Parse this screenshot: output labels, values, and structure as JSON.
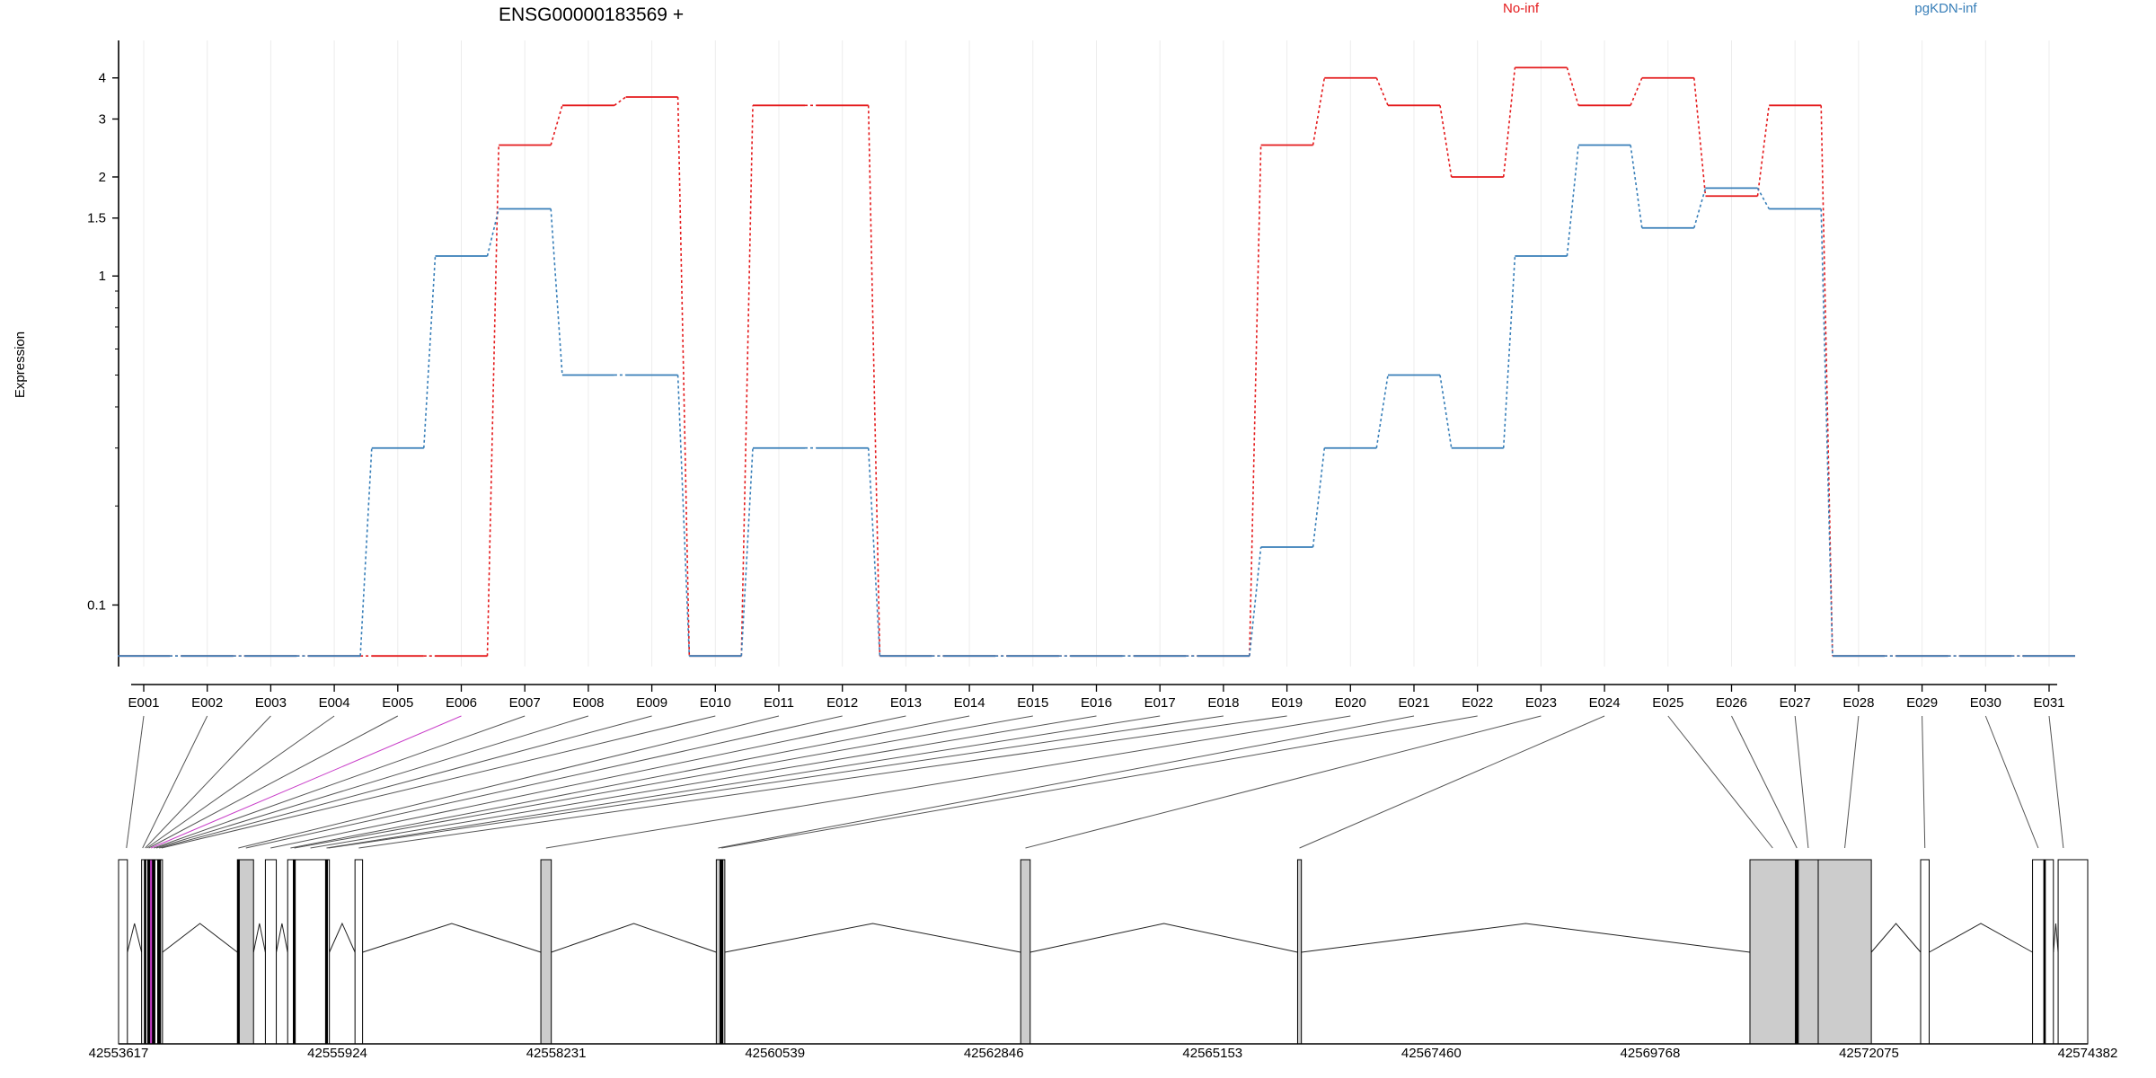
{
  "chart_data": {
    "type": "line",
    "title": "ENSG00000183569 +",
    "ylabel": "Expression",
    "y_scale": "log",
    "ylim": [
      0.065,
      5.2
    ],
    "y_ticks": [
      {
        "value": 0.1,
        "label": "0.1"
      },
      {
        "value": 1,
        "label": "1"
      },
      {
        "value": 1.5,
        "label": "1.5"
      },
      {
        "value": 2,
        "label": "2"
      },
      {
        "value": 3,
        "label": "3"
      },
      {
        "value": 4,
        "label": "4"
      }
    ],
    "grid": "vertical-light",
    "legend_position": "top-right",
    "categories": [
      "E001",
      "E002",
      "E003",
      "E004",
      "E005",
      "E006",
      "E007",
      "E008",
      "E009",
      "E010",
      "E011",
      "E012",
      "E013",
      "E014",
      "E015",
      "E016",
      "E017",
      "E018",
      "E019",
      "E020",
      "E021",
      "E022",
      "E023",
      "E024",
      "E025",
      "E026",
      "E027",
      "E028",
      "E029",
      "E030",
      "E031"
    ],
    "series": [
      {
        "name": "No-inf",
        "color": "#e41a1c",
        "values": [
          0.07,
          0.07,
          0.07,
          0.07,
          0.07,
          0.07,
          2.5,
          3.3,
          3.5,
          0.07,
          3.3,
          3.3,
          0.07,
          0.07,
          0.07,
          0.07,
          0.07,
          0.07,
          2.5,
          4.0,
          3.3,
          2.0,
          4.3,
          3.3,
          4.0,
          1.75,
          3.3,
          0.07,
          0.07,
          0.07,
          0.07
        ]
      },
      {
        "name": "pgKDN-inf",
        "color": "#377eb8",
        "values": [
          0.07,
          0.07,
          0.07,
          0.07,
          0.3,
          1.15,
          1.6,
          0.5,
          0.5,
          0.07,
          0.3,
          0.3,
          0.07,
          0.07,
          0.07,
          0.07,
          0.07,
          0.07,
          0.15,
          0.3,
          0.5,
          0.3,
          1.15,
          2.5,
          1.4,
          1.85,
          1.6,
          0.07,
          0.07,
          0.07,
          0.07
        ]
      }
    ],
    "gene_model": {
      "coordinate_labels": [
        "42553617",
        "42555924",
        "42558231",
        "42560539",
        "42562846",
        "42565153",
        "42567460",
        "42569768",
        "42572075",
        "42574382"
      ],
      "start": 42553617,
      "end": 42574382,
      "exons": [
        {
          "id": "E001",
          "start": 42553617,
          "end": 42553710,
          "fill": "#ffffff"
        },
        {
          "id": "E002",
          "start": 42553860,
          "end": 42553890,
          "fill": "#ffffff"
        },
        {
          "id": "E003",
          "start": 42553890,
          "end": 42553905,
          "fill": "#000000"
        },
        {
          "id": "E004",
          "start": 42553905,
          "end": 42553925,
          "fill": "#ffffff"
        },
        {
          "id": "E005",
          "start": 42553925,
          "end": 42553945,
          "fill": "#000000"
        },
        {
          "id": "E006",
          "start": 42553945,
          "end": 42553975,
          "fill": "#c83dc8"
        },
        {
          "id": "E007",
          "start": 42553975,
          "end": 42554000,
          "fill": "#000000"
        },
        {
          "id": "E008",
          "start": 42554000,
          "end": 42554030,
          "fill": "#ffffff"
        },
        {
          "id": "E009",
          "start": 42554030,
          "end": 42554060,
          "fill": "#000000"
        },
        {
          "id": "E010",
          "start": 42554060,
          "end": 42554080,
          "fill": "#ffffff"
        },
        {
          "id": "E011",
          "start": 42554870,
          "end": 42554890,
          "fill": "#000000"
        },
        {
          "id": "E012",
          "start": 42554890,
          "end": 42555040,
          "fill": "#cccccc"
        },
        {
          "id": "E013",
          "start": 42555165,
          "end": 42555280,
          "fill": "#ffffff"
        },
        {
          "id": "E014",
          "start": 42555400,
          "end": 42555460,
          "fill": "#ffffff"
        },
        {
          "id": "E015",
          "start": 42555460,
          "end": 42555480,
          "fill": "#000000"
        },
        {
          "id": "E016",
          "start": 42555480,
          "end": 42555800,
          "fill": "#ffffff"
        },
        {
          "id": "E017",
          "start": 42555800,
          "end": 42555820,
          "fill": "#000000"
        },
        {
          "id": "E018",
          "start": 42555820,
          "end": 42555840,
          "fill": "#ffffff"
        },
        {
          "id": "E019",
          "start": 42556110,
          "end": 42556190,
          "fill": "#ffffff"
        },
        {
          "id": "E020",
          "start": 42558070,
          "end": 42558180,
          "fill": "#cccccc"
        },
        {
          "id": "E021",
          "start": 42559920,
          "end": 42559960,
          "fill": "#cccccc"
        },
        {
          "id": "E022",
          "start": 42559960,
          "end": 42559990,
          "fill": "#000000"
        },
        {
          "id": "E023",
          "start": 42559990,
          "end": 42560010,
          "fill": "#ffffff"
        },
        {
          "id": "E024",
          "start": 42563130,
          "end": 42563230,
          "fill": "#cccccc"
        },
        {
          "id": "E025",
          "start": 42566050,
          "end": 42566090,
          "fill": "#cccccc"
        },
        {
          "id": "E026",
          "start": 42570820,
          "end": 42571300,
          "fill": "#cccccc"
        },
        {
          "id": "E027",
          "start": 42571300,
          "end": 42571330,
          "fill": "#000000"
        },
        {
          "id": "E028",
          "start": 42571330,
          "end": 42571540,
          "fill": "#cccccc"
        },
        {
          "id": "E029",
          "start": 42571540,
          "end": 42572100,
          "fill": "#cccccc"
        },
        {
          "id": "E030",
          "start": 42572620,
          "end": 42572710,
          "fill": "#ffffff"
        },
        {
          "id": "E031",
          "start": 42573800,
          "end": 42573920,
          "fill": "#ffffff"
        },
        {
          "id": "E032",
          "start": 42573920,
          "end": 42573935,
          "fill": "#000000"
        },
        {
          "id": "E033",
          "start": 42573935,
          "end": 42574020,
          "fill": "#ffffff"
        },
        {
          "id": "E034",
          "start": 42574070,
          "end": 42574382,
          "fill": "#ffffff"
        }
      ],
      "exon_links": [
        {
          "label": "E001",
          "target": 42553700
        },
        {
          "label": "E002",
          "target": 42553870
        },
        {
          "label": "E003",
          "target": 42553898
        },
        {
          "label": "E004",
          "target": 42553915
        },
        {
          "label": "E005",
          "target": 42553935
        },
        {
          "label": "E006",
          "target": 42553960,
          "color": "#c83dc8"
        },
        {
          "label": "E007",
          "target": 42553990
        },
        {
          "label": "E008",
          "target": 42554015
        },
        {
          "label": "E009",
          "target": 42554045
        },
        {
          "label": "E010",
          "target": 42554070
        },
        {
          "label": "E011",
          "target": 42554880
        },
        {
          "label": "E012",
          "target": 42554960
        },
        {
          "label": "E013",
          "target": 42555220
        },
        {
          "label": "E014",
          "target": 42555430
        },
        {
          "label": "E015",
          "target": 42555470
        },
        {
          "label": "E016",
          "target": 42555640
        },
        {
          "label": "E017",
          "target": 42555810
        },
        {
          "label": "E018",
          "target": 42555830
        },
        {
          "label": "E019",
          "target": 42556150
        },
        {
          "label": "E020",
          "target": 42558125
        },
        {
          "label": "E021",
          "target": 42559940
        },
        {
          "label": "E022",
          "target": 42559975
        },
        {
          "label": "E023",
          "target": 42563180
        },
        {
          "label": "E024",
          "target": 42566070
        },
        {
          "label": "E025",
          "target": 42571060
        },
        {
          "label": "E026",
          "target": 42571315
        },
        {
          "label": "E027",
          "target": 42571435
        },
        {
          "label": "E028",
          "target": 42571820
        },
        {
          "label": "E029",
          "target": 42572665
        },
        {
          "label": "E030",
          "target": 42573860
        },
        {
          "label": "E031",
          "target": 42574125
        }
      ]
    }
  }
}
